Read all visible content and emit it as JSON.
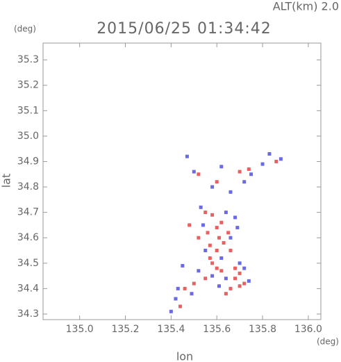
{
  "chart_data": {
    "type": "scatter",
    "title": "2015/06/25 01:34:42",
    "subtitle": "ALT(km) 2.0",
    "y_unit": "(deg)",
    "x_unit": "(deg)",
    "x_label": "lon",
    "y_label": "lat",
    "xlim": [
      134.84,
      136.055
    ],
    "ylim": [
      34.278,
      35.366
    ],
    "xticks": [
      {
        "value": 135,
        "label": "135.0"
      },
      135.2,
      135.4,
      135.6,
      135.8,
      {
        "value": 136,
        "label": "136.0"
      }
    ],
    "yticks": [
      34.3,
      34.4,
      34.5,
      34.6,
      34.7,
      34.8,
      34.9,
      {
        "value": 35,
        "label": "35.0"
      },
      35.1,
      35.2,
      35.3
    ],
    "series": [
      {
        "color": "#e86060",
        "x": [
          135.86,
          135.74,
          135.7,
          135.6,
          135.52,
          135.55,
          135.58,
          135.62,
          135.6,
          135.56,
          135.65,
          135.63,
          135.57,
          135.6,
          135.66,
          135.58,
          135.6,
          135.62,
          135.68,
          135.7,
          135.72,
          135.7,
          135.66,
          135.64,
          135.55,
          135.5,
          135.46,
          135.44,
          135.48,
          135.52,
          135.68,
          135.57,
          135.61
        ],
        "values": [
          34.9,
          34.87,
          34.86,
          34.82,
          34.85,
          34.7,
          34.69,
          34.66,
          34.64,
          34.62,
          34.62,
          34.58,
          34.57,
          34.55,
          34.55,
          34.5,
          34.48,
          34.47,
          34.48,
          34.46,
          34.42,
          34.41,
          34.4,
          34.38,
          34.44,
          34.42,
          34.4,
          34.33,
          34.65,
          34.6,
          34.44,
          34.52,
          34.6
        ]
      },
      {
        "color": "#6a6ae6",
        "x": [
          135.83,
          135.88,
          135.8,
          135.75,
          135.72,
          135.47,
          135.5,
          135.62,
          135.58,
          135.66,
          135.53,
          135.64,
          135.68,
          135.54,
          135.66,
          135.69,
          135.55,
          135.62,
          135.7,
          135.72,
          135.45,
          135.52,
          135.64,
          135.61,
          135.74,
          135.49,
          135.42,
          135.4,
          135.43,
          135.58
        ],
        "values": [
          34.93,
          34.91,
          34.89,
          34.85,
          34.82,
          34.92,
          34.86,
          34.88,
          34.8,
          34.78,
          34.72,
          34.7,
          34.68,
          34.65,
          34.6,
          34.64,
          34.55,
          34.52,
          34.5,
          34.48,
          34.49,
          34.47,
          34.44,
          34.41,
          34.43,
          34.38,
          34.36,
          34.31,
          34.4,
          34.45
        ]
      }
    ]
  }
}
